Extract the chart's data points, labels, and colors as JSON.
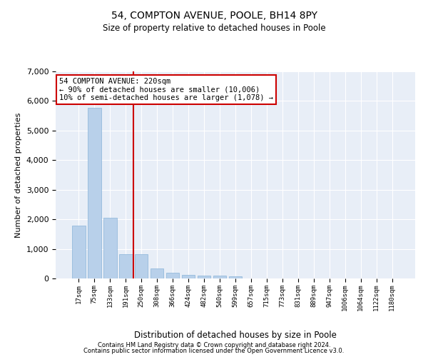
{
  "title1": "54, COMPTON AVENUE, POOLE, BH14 8PY",
  "title2": "Size of property relative to detached houses in Poole",
  "xlabel": "Distribution of detached houses by size in Poole",
  "ylabel": "Number of detached properties",
  "bar_color": "#b8d0ea",
  "bar_edge_color": "#8ab4d8",
  "bg_color": "#e8eef7",
  "grid_color": "#ffffff",
  "annotation_line_color": "#cc0000",
  "annotation_box_color": "#cc0000",
  "annotation_text": "54 COMPTON AVENUE: 220sqm\n← 90% of detached houses are smaller (10,006)\n10% of semi-detached houses are larger (1,078) →",
  "categories": [
    "17sqm",
    "75sqm",
    "133sqm",
    "191sqm",
    "250sqm",
    "308sqm",
    "366sqm",
    "424sqm",
    "482sqm",
    "540sqm",
    "599sqm",
    "657sqm",
    "715sqm",
    "773sqm",
    "831sqm",
    "889sqm",
    "947sqm",
    "1006sqm",
    "1064sqm",
    "1122sqm",
    "1180sqm"
  ],
  "values": [
    1780,
    5780,
    2060,
    810,
    810,
    340,
    200,
    120,
    100,
    100,
    75,
    0,
    0,
    0,
    0,
    0,
    0,
    0,
    0,
    0,
    0
  ],
  "vline_x": 3.5,
  "ylim": [
    0,
    7000
  ],
  "footnote1": "Contains HM Land Registry data © Crown copyright and database right 2024.",
  "footnote2": "Contains public sector information licensed under the Open Government Licence v3.0."
}
